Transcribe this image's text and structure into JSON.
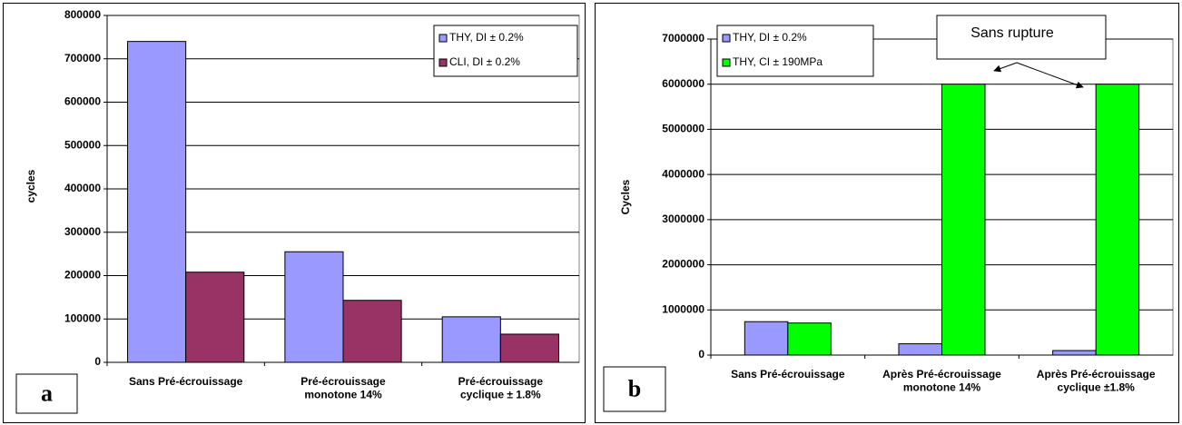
{
  "chart_data": [
    {
      "type": "bar",
      "panel_label": "a",
      "y_label": "cycles",
      "categories": [
        "Sans Pré-écrouissage",
        "Pré-écrouissage\nmonotone 14%",
        "Pré-écrouissage\ncyclique ± 1.8%"
      ],
      "series": [
        {
          "name": "THY, DI ± 0.2%",
          "color": "#9999ff",
          "values": [
            740000,
            255000,
            105000
          ]
        },
        {
          "name": "CLI, DI ± 0.2%",
          "color": "#993366",
          "values": [
            208000,
            143000,
            65000
          ]
        }
      ],
      "ylim": [
        0,
        800000
      ],
      "yticks": [
        0,
        100000,
        200000,
        300000,
        400000,
        500000,
        600000,
        700000,
        800000
      ],
      "grid": true,
      "legend": "upper right"
    },
    {
      "type": "bar",
      "panel_label": "b",
      "y_label": "Cycles",
      "annotation": "Sans rupture",
      "categories": [
        "Sans Pré-écrouissage",
        "Après Pré-écrouissage\nmonotone 14%",
        "Après Pré-écrouissage\ncyclique ±1.8%"
      ],
      "series": [
        {
          "name": "THY, DI ± 0.2%",
          "color": "#9999ff",
          "values": [
            740000,
            250000,
            100000
          ]
        },
        {
          "name": "THY, CI ± 190MPa",
          "color": "#00ff00",
          "values": [
            710000,
            6000000,
            6000000
          ]
        }
      ],
      "ylim": [
        0,
        7000000
      ],
      "yticks": [
        0,
        1000000,
        2000000,
        3000000,
        4000000,
        5000000,
        6000000,
        7000000
      ],
      "grid": true,
      "legend": "upper left"
    }
  ]
}
